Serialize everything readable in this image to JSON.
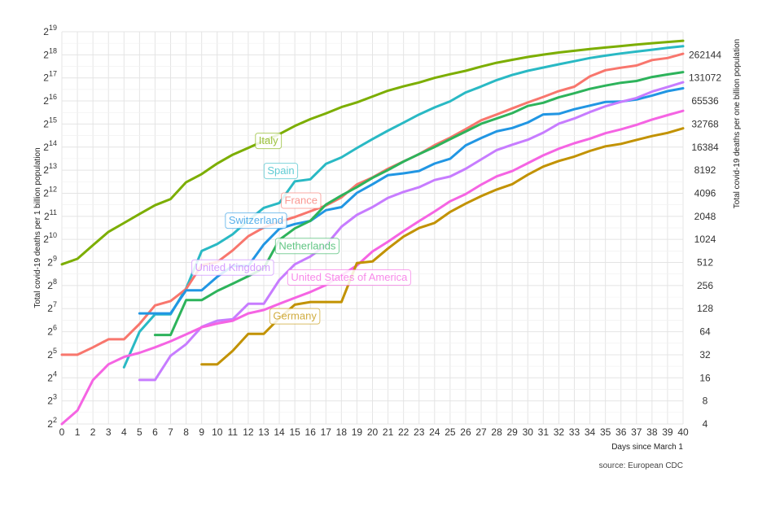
{
  "chart_data": {
    "type": "line",
    "xlabel": "Days since March 1",
    "ylabel_left": "Total covid-19 deaths per 1 billion population",
    "ylabel_right": "Total covid-19 deaths per one billion population",
    "caption": "source: European CDC",
    "xlim": [
      0,
      40
    ],
    "ylim_log2": [
      2,
      19
    ],
    "y_scale": "log2",
    "grid": true,
    "x_ticks": [
      "0",
      "1",
      "2",
      "3",
      "4",
      "5",
      "6",
      "7",
      "8",
      "9",
      "10",
      "11",
      "12",
      "13",
      "14",
      "15",
      "16",
      "17",
      "18",
      "19",
      "20",
      "21",
      "22",
      "23",
      "24",
      "25",
      "26",
      "27",
      "28",
      "29",
      "30",
      "31",
      "32",
      "33",
      "34",
      "35",
      "36",
      "37",
      "38",
      "39",
      "40"
    ],
    "y_left_ticks": [
      {
        "base": "2",
        "exp": "2"
      },
      {
        "base": "2",
        "exp": "3"
      },
      {
        "base": "2",
        "exp": "4"
      },
      {
        "base": "2",
        "exp": "5"
      },
      {
        "base": "2",
        "exp": "6"
      },
      {
        "base": "2",
        "exp": "7"
      },
      {
        "base": "2",
        "exp": "8"
      },
      {
        "base": "2",
        "exp": "9"
      },
      {
        "base": "2",
        "exp": "10"
      },
      {
        "base": "2",
        "exp": "11"
      },
      {
        "base": "2",
        "exp": "12"
      },
      {
        "base": "2",
        "exp": "13"
      },
      {
        "base": "2",
        "exp": "14"
      },
      {
        "base": "2",
        "exp": "15"
      },
      {
        "base": "2",
        "exp": "16"
      },
      {
        "base": "2",
        "exp": "17"
      },
      {
        "base": "2",
        "exp": "18"
      },
      {
        "base": "2",
        "exp": "19"
      }
    ],
    "y_right_ticks": [
      "4",
      "8",
      "16",
      "32",
      "64",
      "128",
      "256",
      "512",
      "1024",
      "2048",
      "4096",
      "8192",
      "16384",
      "32768",
      "65536",
      "131072",
      "262144"
    ],
    "series": [
      {
        "name": "Italy",
        "color": "#7cae00",
        "x": [
          0,
          1,
          2,
          3,
          4,
          5,
          6,
          7,
          8,
          9,
          10,
          11,
          12,
          13,
          14,
          15,
          16,
          17,
          18,
          19,
          20,
          21,
          22,
          23,
          24,
          25,
          26,
          27,
          28,
          29,
          30,
          31,
          32,
          33,
          34,
          35,
          36,
          37,
          38,
          39,
          40
        ],
        "y": [
          484,
          572,
          861,
          1286,
          1676,
          2198,
          2855,
          3442,
          5711,
          7283,
          10025,
          13050,
          16028,
          19758,
          24220,
          30900,
          38000,
          45000,
          54500,
          62800,
          74900,
          89200,
          101600,
          114000,
          131000,
          146300,
          162000,
          184300,
          206600,
          225800,
          245700,
          264000,
          281000,
          296200,
          312200,
          326300,
          341000,
          356000,
          371800,
          385600,
          400000
        ]
      },
      {
        "name": "Spain",
        "color": "#29b9c4",
        "x": [
          4,
          5,
          6,
          7,
          8,
          9,
          10,
          11,
          12,
          13,
          14,
          15,
          16,
          17,
          18,
          19,
          20,
          21,
          22,
          23,
          24,
          25,
          26,
          27,
          28,
          29,
          30,
          31,
          32,
          33,
          34,
          35,
          36,
          37,
          38,
          39,
          40
        ],
        "y": [
          22,
          64,
          108,
          108,
          235,
          724,
          891,
          1193,
          1810,
          2642,
          3061,
          5850,
          6227,
          9895,
          12028,
          15948,
          20839,
          26900,
          34154,
          43636,
          53952,
          64800,
          84700,
          101200,
          122600,
          143000,
          162200,
          178800,
          197200,
          216400,
          238000,
          255800,
          272800,
          289000,
          305500,
          324000,
          340000
        ]
      },
      {
        "name": "France",
        "color": "#f8766d",
        "x": [
          0,
          1,
          2,
          3,
          4,
          5,
          6,
          7,
          8,
          9,
          10,
          11,
          12,
          13,
          14,
          15,
          16,
          17,
          18,
          19,
          20,
          21,
          22,
          23,
          24,
          25,
          26,
          27,
          28,
          29,
          30,
          31,
          32,
          33,
          34,
          35,
          36,
          37,
          38,
          39,
          40
        ],
        "y": [
          32,
          32,
          40,
          51,
          51,
          81,
          141,
          161,
          231,
          473,
          517,
          735,
          1125,
          1463,
          1735,
          2007,
          2385,
          2838,
          3620,
          5340,
          6578,
          8560,
          10650,
          13270,
          17340,
          21740,
          28100,
          36700,
          43600,
          52400,
          62600,
          74000,
          88300,
          100600,
          137000,
          165000,
          178000,
          190000,
          224000,
          238000,
          270000
        ]
      },
      {
        "name": "Switzerland",
        "color": "#2196e3",
        "x": [
          5,
          6,
          7,
          8,
          9,
          10,
          11,
          12,
          13,
          14,
          15,
          16,
          17,
          18,
          19,
          20,
          21,
          22,
          23,
          24,
          25,
          26,
          27,
          28,
          29,
          30,
          31,
          32,
          33,
          34,
          35,
          36,
          37,
          38,
          39,
          40
        ],
        "y": [
          111,
          111,
          111,
          222,
          222,
          333,
          462,
          462,
          880,
          1410,
          1623,
          1784,
          2460,
          2700,
          4140,
          5365,
          7060,
          7450,
          7990,
          10000,
          11540,
          17280,
          21500,
          26300,
          29100,
          34300,
          43700,
          44500,
          51100,
          57000,
          63600,
          64400,
          68400,
          77100,
          88000,
          95900
        ]
      },
      {
        "name": "Netherlands",
        "color": "#2db35b",
        "x": [
          6,
          7,
          8,
          9,
          10,
          11,
          12,
          13,
          14,
          15,
          16,
          17,
          18,
          19,
          20,
          21,
          22,
          23,
          24,
          25,
          26,
          27,
          28,
          29,
          30,
          31,
          32,
          33,
          34,
          35,
          36,
          37,
          38,
          39,
          40
        ],
        "y": [
          58,
          58,
          165,
          165,
          218,
          271,
          339,
          431,
          1011,
          1425,
          1793,
          2916,
          3834,
          4930,
          6490,
          8230,
          10620,
          13250,
          16440,
          20790,
          26150,
          33000,
          38700,
          45500,
          56400,
          62000,
          73000,
          82500,
          94300,
          104000,
          113300,
          119600,
          134500,
          145200,
          156000
        ]
      },
      {
        "name": "United Kingdom",
        "color": "#c77cff",
        "x": [
          5,
          6,
          7,
          8,
          9,
          10,
          11,
          12,
          13,
          14,
          15,
          16,
          17,
          18,
          19,
          20,
          21,
          22,
          23,
          24,
          25,
          26,
          27,
          28,
          29,
          30,
          31,
          32,
          33,
          34,
          35,
          36,
          37,
          38,
          39,
          40
        ],
        "y": [
          15,
          15,
          31,
          44,
          74,
          89,
          93,
          148,
          148,
          303,
          484,
          612,
          859,
          1498,
          2142,
          2700,
          3573,
          4262,
          4905,
          6090,
          6770,
          8540,
          11320,
          14990,
          17600,
          20440,
          25300,
          33200,
          38700,
          46900,
          55800,
          63800,
          71700,
          86700,
          99600,
          115000
        ]
      },
      {
        "name": "United States of America",
        "color": "#f564e3",
        "x": [
          0,
          1,
          2,
          3,
          4,
          5,
          6,
          7,
          8,
          9,
          10,
          11,
          12,
          13,
          14,
          15,
          16,
          17,
          18,
          19,
          20,
          21,
          22,
          23,
          24,
          25,
          26,
          27,
          28,
          29,
          30,
          31,
          32,
          33,
          34,
          35,
          36,
          37,
          38,
          39,
          40
        ],
        "y": [
          4,
          6,
          15,
          24,
          30,
          34,
          40,
          48,
          59,
          73,
          82,
          89,
          111,
          123,
          148,
          177,
          211,
          260,
          348,
          468,
          713,
          955,
          1314,
          1772,
          2366,
          3218,
          3995,
          5300,
          6812,
          7977,
          10113,
          12800,
          15640,
          18400,
          21130,
          24860,
          27930,
          31960,
          37530,
          42750,
          48700
        ]
      },
      {
        "name": "Germany",
        "color": "#c29200",
        "x": [
          9,
          10,
          11,
          12,
          13,
          14,
          15,
          16,
          17,
          18,
          19,
          20,
          21,
          22,
          23,
          24,
          25,
          26,
          27,
          28,
          29,
          30,
          31,
          32,
          33,
          34,
          35,
          36,
          37,
          38,
          39,
          40
        ],
        "y": [
          24,
          24,
          36,
          60,
          60,
          96,
          144,
          156,
          156,
          156,
          504,
          528,
          780,
          1116,
          1440,
          1680,
          2340,
          3000,
          3756,
          4584,
          5388,
          7140,
          9120,
          10800,
          12324,
          14580,
          16776,
          18060,
          20340,
          22848,
          25140,
          28800
        ]
      }
    ],
    "labels": [
      {
        "series": "Italy",
        "text": "Italy",
        "x": 13.3,
        "y": 20000
      },
      {
        "series": "Spain",
        "text": "Spain",
        "x": 14.1,
        "y": 8100
      },
      {
        "series": "France",
        "text": "France",
        "x": 15.4,
        "y": 3320
      },
      {
        "series": "Switzerland",
        "text": "Switzerland",
        "x": 12.5,
        "y": 1820
      },
      {
        "series": "Netherlands",
        "text": "Netherlands",
        "x": 15.8,
        "y": 850
      },
      {
        "series": "United Kingdom",
        "text": "United Kingdom",
        "x": 11.0,
        "y": 445
      },
      {
        "series": "United States of America",
        "text": "United States of America",
        "x": 18.5,
        "y": 330
      },
      {
        "series": "Germany",
        "text": "Germany",
        "x": 15.0,
        "y": 103
      }
    ]
  }
}
